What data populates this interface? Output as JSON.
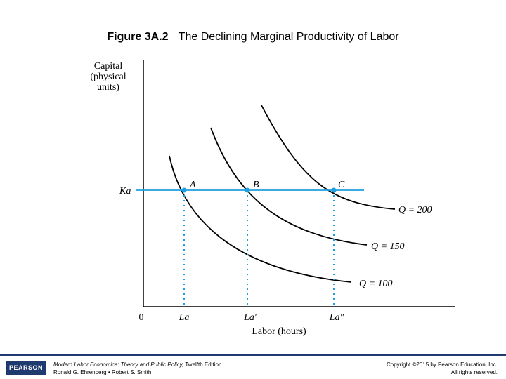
{
  "title": {
    "figure_number": "Figure 3A.2",
    "text": "The Declining Marginal Productivity of Labor"
  },
  "diagram": {
    "y_axis_label": [
      "Capital",
      "(physical",
      "units)"
    ],
    "x_axis_label": "Labor (hours)",
    "origin_label": "0",
    "capital_level_label": "Ka",
    "points": [
      {
        "label": "A",
        "labor_label": "La"
      },
      {
        "label": "B",
        "labor_label": "La′"
      },
      {
        "label": "C",
        "labor_label": "La″"
      }
    ],
    "isoquants": [
      "Q = 100",
      "Q = 150",
      "Q = 200"
    ],
    "colors": {
      "curves": "#000000",
      "capital_line": "#1f9fe0",
      "dotted_lines": "#1f9fe0",
      "points": "#1f9fe0"
    }
  },
  "footer": {
    "publisher_logo": "PEARSON",
    "book_title": "Modern Labor Economics: Theory and Public Policy,",
    "edition": " Twelfth Edition",
    "authors": "Ronald G. Ehrenberg • Robert S. Smith",
    "copyright": "Copyright ©2015 by Pearson Education, Inc.",
    "rights": "All rights reserved.",
    "accent_color": "#1f3a6e"
  }
}
